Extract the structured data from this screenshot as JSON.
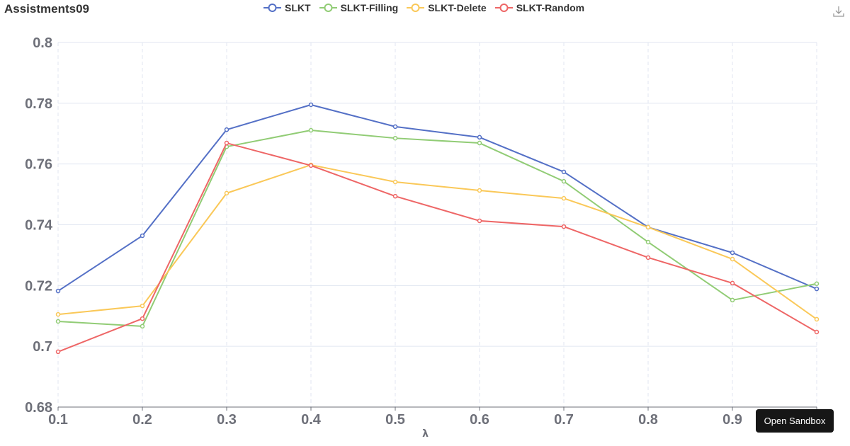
{
  "header": {
    "title": "Assistments09",
    "download_icon": "download-icon"
  },
  "sandbox_button": {
    "label": "Open Sandbox"
  },
  "colors": {
    "SLKT": "#5470c6",
    "SLKT-Filling": "#91cc75",
    "SLKT-Delete": "#fac858",
    "SLKT-Random": "#ee6666",
    "grid": "#e0e6f1",
    "axis": "#6e7079",
    "label": "#6e7079"
  },
  "chart_data": {
    "type": "line",
    "title": "Assistments09",
    "xlabel": "λ",
    "ylabel": "",
    "x": [
      "0.1",
      "0.2",
      "0.3",
      "0.4",
      "0.5",
      "0.6",
      "0.7",
      "0.8",
      "0.9",
      "1.0"
    ],
    "ylim": [
      0.68,
      0.8
    ],
    "yticks": [
      "0.68",
      "0.7",
      "0.72",
      "0.74",
      "0.76",
      "0.78",
      "0.8"
    ],
    "grid": true,
    "legend_position": "top",
    "series": [
      {
        "name": "SLKT",
        "values": [
          0.7182,
          0.7364,
          0.7713,
          0.7795,
          0.7723,
          0.7688,
          0.7574,
          0.7392,
          0.7308,
          0.7189
        ]
      },
      {
        "name": "SLKT-Filling",
        "values": [
          0.7082,
          0.7066,
          0.7657,
          0.7711,
          0.7685,
          0.7669,
          0.7543,
          0.7343,
          0.7152,
          0.7206
        ]
      },
      {
        "name": "SLKT-Delete",
        "values": [
          0.7105,
          0.7133,
          0.7504,
          0.7597,
          0.7541,
          0.7513,
          0.7487,
          0.7392,
          0.7287,
          0.7089
        ]
      },
      {
        "name": "SLKT-Random",
        "values": [
          0.6982,
          0.7091,
          0.7669,
          0.7595,
          0.7494,
          0.7413,
          0.7394,
          0.7292,
          0.7208,
          0.7047
        ]
      }
    ]
  }
}
